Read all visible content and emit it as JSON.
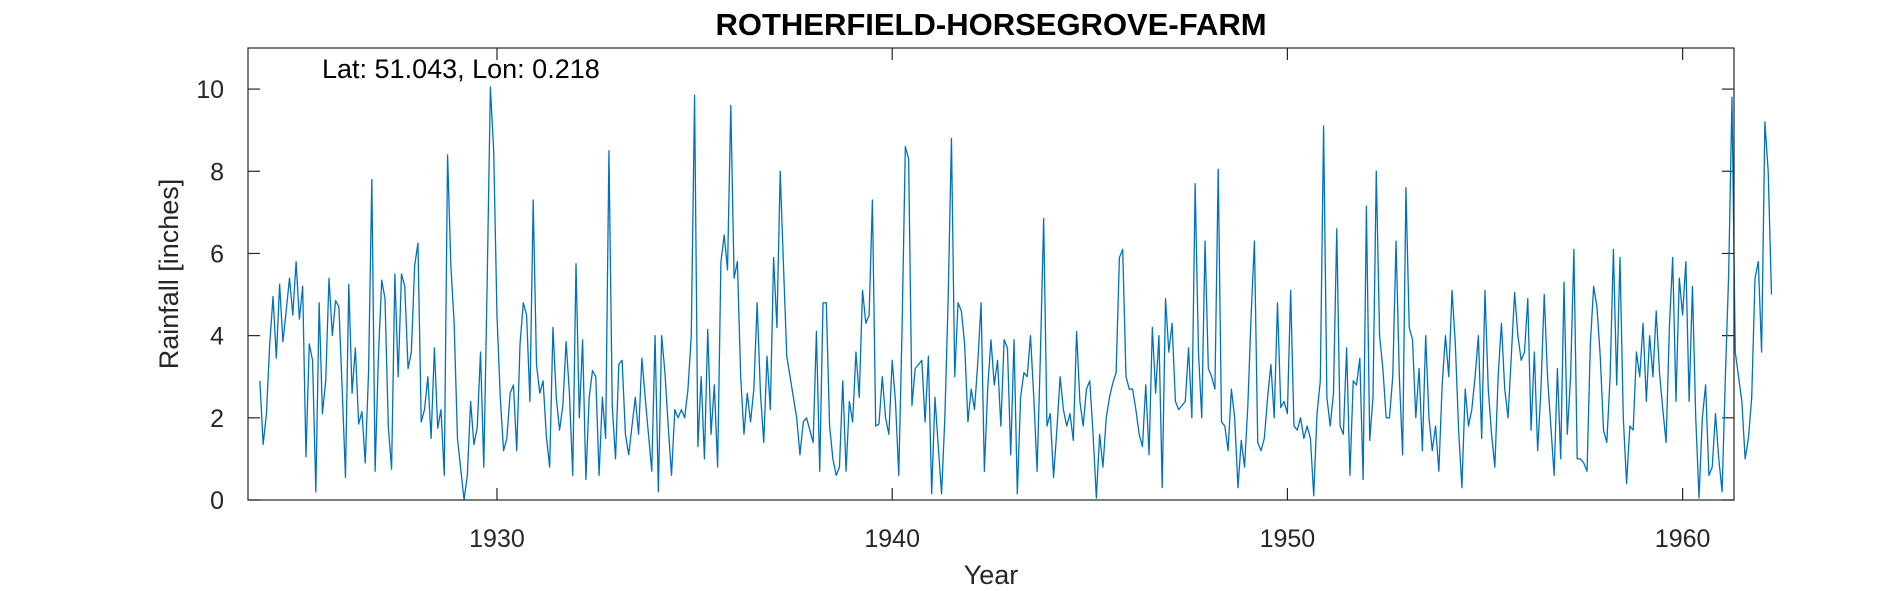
{
  "chart_data": {
    "type": "line",
    "title": "ROTHERFIELD-HORSEGROVE-FARM",
    "xlabel": "Year",
    "ylabel": "Rainfall [inches]",
    "annotation": "Lat: 51.043, Lon: 0.218",
    "xlim": [
      1923.7,
      1961.3
    ],
    "ylim": [
      0,
      11
    ],
    "xticks": [
      1930,
      1940,
      1950,
      1960
    ],
    "yticks": [
      0,
      2,
      4,
      6,
      8,
      10
    ],
    "grid": false,
    "line_color": "#0072BD",
    "series": [
      {
        "x_start": 1924.0,
        "x_step": 0.08333,
        "values": [
          2.9,
          1.35,
          2.1,
          3.8,
          4.95,
          3.45,
          5.25,
          3.85,
          4.6,
          5.4,
          4.5,
          5.8,
          4.4,
          5.2,
          1.05,
          3.8,
          3.4,
          0.2,
          4.8,
          2.1,
          2.9,
          5.4,
          4.0,
          4.85,
          4.7,
          2.7,
          0.55,
          5.25,
          2.6,
          3.7,
          1.85,
          2.15,
          0.9,
          3.1,
          7.8,
          0.7,
          3.5,
          5.35,
          4.9,
          1.8,
          0.75,
          5.5,
          3.0,
          5.5,
          5.2,
          3.2,
          3.6,
          5.7,
          6.25,
          1.9,
          2.2,
          3.0,
          1.5,
          3.7,
          1.75,
          2.2,
          0.6,
          8.4,
          5.7,
          4.3,
          1.5,
          0.75,
          0.0,
          0.6,
          2.4,
          1.35,
          1.75,
          3.6,
          0.8,
          5.2,
          10.05,
          8.5,
          4.5,
          2.5,
          1.2,
          1.5,
          2.6,
          2.8,
          1.2,
          3.8,
          4.8,
          4.5,
          2.4,
          7.3,
          3.3,
          2.6,
          2.9,
          1.55,
          0.8,
          4.2,
          2.5,
          1.7,
          2.3,
          3.85,
          2.6,
          0.6,
          5.75,
          2.0,
          3.9,
          0.5,
          2.5,
          3.15,
          3.0,
          0.6,
          2.5,
          1.5,
          8.5,
          2.3,
          1.0,
          3.3,
          3.4,
          1.6,
          1.1,
          1.8,
          2.5,
          1.6,
          3.45,
          2.5,
          1.6,
          0.7,
          4.0,
          0.2,
          4.0,
          3.1,
          1.8,
          0.6,
          2.2,
          2.0,
          2.2,
          2.0,
          2.7,
          4.0,
          9.85,
          1.3,
          3.0,
          1.0,
          4.15,
          1.6,
          2.8,
          0.8,
          5.8,
          6.45,
          5.6,
          9.6,
          5.4,
          5.8,
          3.0,
          1.6,
          2.6,
          1.9,
          2.7,
          4.8,
          2.6,
          1.4,
          3.5,
          2.2,
          5.9,
          4.2,
          8.0,
          5.7,
          3.5,
          3.0,
          2.5,
          2.0,
          1.1,
          1.9,
          2.0,
          1.7,
          1.4,
          4.1,
          0.7,
          4.8,
          4.8,
          1.8,
          1.0,
          0.6,
          0.8,
          2.9,
          0.7,
          2.4,
          1.9,
          3.6,
          2.5,
          5.1,
          4.3,
          4.5,
          7.3,
          1.8,
          1.85,
          3.0,
          2.0,
          1.6,
          3.4,
          2.4,
          0.6,
          4.15,
          8.6,
          8.3,
          2.3,
          3.2,
          3.3,
          3.4,
          1.9,
          3.5,
          0.15,
          2.5,
          1.3,
          0.15,
          2.0,
          4.9,
          8.8,
          3.0,
          4.8,
          4.6,
          3.8,
          1.9,
          2.7,
          2.2,
          3.35,
          4.8,
          0.7,
          2.7,
          3.9,
          2.8,
          3.4,
          1.8,
          3.9,
          3.7,
          1.1,
          3.9,
          0.15,
          2.5,
          3.1,
          3.0,
          4.0,
          2.5,
          0.7,
          3.5,
          6.85,
          1.8,
          2.1,
          0.55,
          1.7,
          3.0,
          2.2,
          1.8,
          2.1,
          1.45,
          4.1,
          2.4,
          1.8,
          2.7,
          2.9,
          1.6,
          0.05,
          1.6,
          0.8,
          2.0,
          2.5,
          2.85,
          3.1,
          5.9,
          6.1,
          3.0,
          2.7,
          2.7,
          2.2,
          1.6,
          1.3,
          2.8,
          1.1,
          4.2,
          2.6,
          4.0,
          0.3,
          4.9,
          3.6,
          4.3,
          2.4,
          2.2,
          2.3,
          2.4,
          3.7,
          2.0,
          7.7,
          3.6,
          2.0,
          6.3,
          3.2,
          3.0,
          2.7,
          8.05,
          1.9,
          1.8,
          1.2,
          2.7,
          2.0,
          0.3,
          1.45,
          0.8,
          2.3,
          4.5,
          6.3,
          1.4,
          1.2,
          1.5,
          2.5,
          3.3,
          2.0,
          4.8,
          2.25,
          2.4,
          2.1,
          5.1,
          1.8,
          1.7,
          2.0,
          1.5,
          1.8,
          1.5,
          0.1,
          2.1,
          2.9,
          9.1,
          2.5,
          1.8,
          2.6,
          6.6,
          1.8,
          1.6,
          3.7,
          0.6,
          2.9,
          2.8,
          3.45,
          0.5,
          7.15,
          1.45,
          2.5,
          8.0,
          4.0,
          3.2,
          2.0,
          2.0,
          3.0,
          6.3,
          3.0,
          1.1,
          7.6,
          4.2,
          3.9,
          2.0,
          3.2,
          1.2,
          4.0,
          2.0,
          1.2,
          1.8,
          0.7,
          2.8,
          4.0,
          3.0,
          5.1,
          3.8,
          1.7,
          0.3,
          2.7,
          1.8,
          2.2,
          3.0,
          4.0,
          1.5,
          5.1,
          2.7,
          1.6,
          0.8,
          3.0,
          4.3,
          2.7,
          2.0,
          3.5,
          5.05,
          4.0,
          3.4,
          3.6,
          4.9,
          1.7,
          3.6,
          1.2,
          2.7,
          5.0,
          3.0,
          1.8,
          0.6,
          3.2,
          1.0,
          5.3,
          1.6,
          3.0,
          6.1,
          1.0,
          1.0,
          0.9,
          0.7,
          3.8,
          5.2,
          4.7,
          3.5,
          1.7,
          1.4,
          3.0,
          6.1,
          2.8,
          5.9,
          2.0,
          0.4,
          1.8,
          1.7,
          3.6,
          3.0,
          4.3,
          2.4,
          4.0,
          3.0,
          4.6,
          3.1,
          2.2,
          1.4,
          4.2,
          5.9,
          2.4,
          5.4,
          4.5,
          5.8,
          2.4,
          5.2,
          2.0,
          0.05,
          2.0,
          2.8,
          0.6,
          0.8,
          2.1,
          1.0,
          0.2,
          3.0,
          5.5,
          9.8,
          3.6,
          3.0,
          2.4,
          1.0,
          1.5,
          2.5,
          5.4,
          5.8,
          3.6,
          9.2,
          8.0,
          5.0
        ]
      }
    ]
  }
}
